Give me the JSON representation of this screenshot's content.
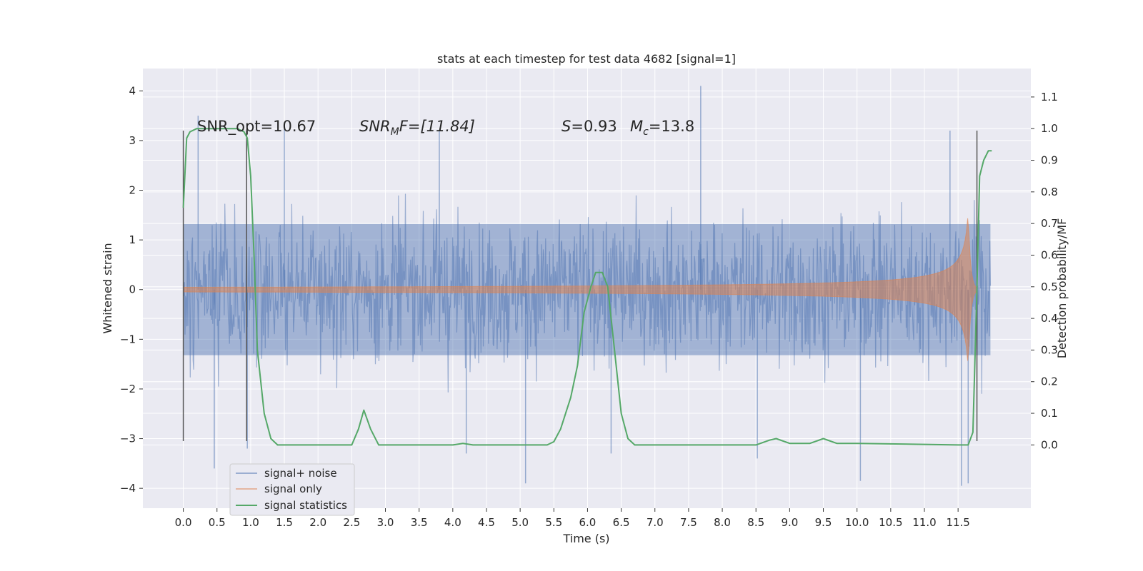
{
  "chart_data": {
    "type": "line",
    "title": "stats at each timestep for test data 4682 [signal=1]",
    "xlabel": "Time (s)",
    "ylabel": "Whitened strain",
    "ylabel_right": "Detection probability/MF",
    "xlim": [
      -0.6,
      12.58
    ],
    "ylim": [
      -4.4,
      4.45
    ],
    "ylim_right": [
      -0.2,
      1.19
    ],
    "x_ticks": [
      "0.0",
      "0.5",
      "1.0",
      "1.5",
      "2.0",
      "2.5",
      "3.0",
      "3.5",
      "4.0",
      "4.5",
      "5.0",
      "5.5",
      "6.0",
      "6.5",
      "7.0",
      "7.5",
      "8.0",
      "8.5",
      "9.0",
      "9.5",
      "10.0",
      "10.5",
      "11.0",
      "11.5"
    ],
    "y_ticks": [
      "4",
      "3",
      "2",
      "1",
      "0",
      "−1",
      "−2",
      "−3",
      "−4"
    ],
    "y_ticks_right": [
      "1.1",
      "1.0",
      "0.9",
      "0.8",
      "0.7",
      "0.6",
      "0.5",
      "0.4",
      "0.3",
      "0.2",
      "0.1",
      "0.0"
    ],
    "grid": true,
    "legend_position": "lower-left",
    "legend": [
      "signal+ noise",
      "signal only",
      "signal statistics"
    ],
    "annotations": {
      "snr_opt": "SNR_opt=10.67",
      "snr_mf_sym": "SNR",
      "snr_mf_sub": "M",
      "snr_mf_rest": "F=[11.84]",
      "s_sym": "S",
      "s_rest": "=0.93",
      "mc_sym": "M",
      "mc_sub": "c",
      "mc_rest": "=13.8"
    },
    "vertical_markers": [
      {
        "x": 0.0,
        "ymin": -3.05,
        "ymax": 3.2
      },
      {
        "x": 0.94,
        "ymin": -3.05,
        "ymax": 3.2
      },
      {
        "x": 11.78,
        "ymin": -3.05,
        "ymax": 3.2
      }
    ],
    "series": [
      {
        "name": "signal+ noise",
        "kind": "noise",
        "color": "#4c72b0",
        "x_range": [
          0,
          11.98
        ],
        "spread": 1.32,
        "spikes": [
          {
            "x": 0.22,
            "y": 3.5
          },
          {
            "x": 0.46,
            "y": -3.6
          },
          {
            "x": 0.95,
            "y": -3.2
          },
          {
            "x": 1.5,
            "y": 3.3
          },
          {
            "x": 3.8,
            "y": 3.2
          },
          {
            "x": 4.2,
            "y": -3.3
          },
          {
            "x": 5.08,
            "y": -3.9
          },
          {
            "x": 6.35,
            "y": -3.3
          },
          {
            "x": 7.68,
            "y": 4.1
          },
          {
            "x": 8.52,
            "y": -3.4
          },
          {
            "x": 10.05,
            "y": -3.85
          },
          {
            "x": 11.38,
            "y": 3.2
          },
          {
            "x": 11.55,
            "y": -3.95
          },
          {
            "x": 11.65,
            "y": -3.9
          }
        ]
      },
      {
        "name": "signal only",
        "kind": "chirp",
        "color": "#dd8452",
        "x_range": [
          0,
          11.78
        ],
        "peak_x": 11.65,
        "peak_amp": 1.6
      },
      {
        "name": "signal statistics",
        "color": "#55a868",
        "axis": "right",
        "points": [
          [
            0,
            0.75
          ],
          [
            0.05,
            0.97
          ],
          [
            0.1,
            0.99
          ],
          [
            0.2,
            1.0
          ],
          [
            0.5,
            1.0
          ],
          [
            0.8,
            1.0
          ],
          [
            0.9,
            0.99
          ],
          [
            0.95,
            0.97
          ],
          [
            1.0,
            0.85
          ],
          [
            1.05,
            0.6
          ],
          [
            1.1,
            0.3
          ],
          [
            1.2,
            0.1
          ],
          [
            1.3,
            0.02
          ],
          [
            1.4,
            0.0
          ],
          [
            2.5,
            0.0
          ],
          [
            2.6,
            0.05
          ],
          [
            2.68,
            0.11
          ],
          [
            2.78,
            0.05
          ],
          [
            2.9,
            0.0
          ],
          [
            4.0,
            0.0
          ],
          [
            4.15,
            0.005
          ],
          [
            4.3,
            0.0
          ],
          [
            5.4,
            0.0
          ],
          [
            5.5,
            0.01
          ],
          [
            5.6,
            0.05
          ],
          [
            5.75,
            0.15
          ],
          [
            5.85,
            0.25
          ],
          [
            5.95,
            0.42
          ],
          [
            6.05,
            0.5
          ],
          [
            6.12,
            0.545
          ],
          [
            6.22,
            0.545
          ],
          [
            6.3,
            0.5
          ],
          [
            6.4,
            0.3
          ],
          [
            6.5,
            0.1
          ],
          [
            6.6,
            0.02
          ],
          [
            6.7,
            0.0
          ],
          [
            8.5,
            0.0
          ],
          [
            8.7,
            0.015
          ],
          [
            8.8,
            0.02
          ],
          [
            9.0,
            0.005
          ],
          [
            9.3,
            0.005
          ],
          [
            9.5,
            0.02
          ],
          [
            9.7,
            0.005
          ],
          [
            10.0,
            0.005
          ],
          [
            11.5,
            0.0
          ],
          [
            11.65,
            0.0
          ],
          [
            11.72,
            0.04
          ],
          [
            11.78,
            0.5
          ],
          [
            11.82,
            0.85
          ],
          [
            11.88,
            0.9
          ],
          [
            11.95,
            0.93
          ],
          [
            12.0,
            0.93
          ]
        ]
      }
    ]
  }
}
